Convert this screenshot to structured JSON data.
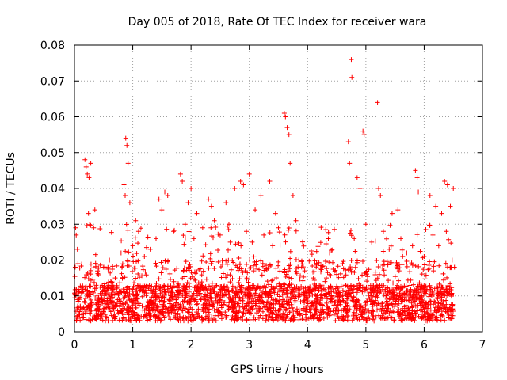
{
  "chart_data": {
    "type": "scatter",
    "title": "Day 005 of 2018, Rate Of TEC Index for receiver wara",
    "xlabel": "GPS time / hours",
    "ylabel": "ROTI / TECUs",
    "xlim": [
      0,
      7
    ],
    "ylim": [
      0,
      0.08
    ],
    "xticks": [
      "0",
      "1",
      "2",
      "3",
      "4",
      "5",
      "6",
      "7"
    ],
    "yticks": [
      "0",
      "0.01",
      "0.02",
      "0.03",
      "0.04",
      "0.05",
      "0.06",
      "0.07",
      "0.08"
    ],
    "grid": true,
    "marker": "+",
    "color": "#ff0000",
    "series": [
      {
        "name": "ROTI",
        "points": [
          [
            0.02,
            0.029
          ],
          [
            0.03,
            0.027
          ],
          [
            0.05,
            0.023
          ],
          [
            0.06,
            0.019
          ],
          [
            0.18,
            0.048
          ],
          [
            0.2,
            0.046
          ],
          [
            0.22,
            0.044
          ],
          [
            0.25,
            0.043
          ],
          [
            0.28,
            0.047
          ],
          [
            0.24,
            0.033
          ],
          [
            0.35,
            0.034
          ],
          [
            0.33,
            0.029
          ],
          [
            0.88,
            0.054
          ],
          [
            0.9,
            0.052
          ],
          [
            0.92,
            0.047
          ],
          [
            0.87,
            0.038
          ],
          [
            0.95,
            0.036
          ],
          [
            0.85,
            0.041
          ],
          [
            1.05,
            0.031
          ],
          [
            1.1,
            0.028
          ],
          [
            1.45,
            0.037
          ],
          [
            1.5,
            0.034
          ],
          [
            1.55,
            0.039
          ],
          [
            1.6,
            0.038
          ],
          [
            1.82,
            0.044
          ],
          [
            1.85,
            0.042
          ],
          [
            1.95,
            0.036
          ],
          [
            2.0,
            0.04
          ],
          [
            2.1,
            0.033
          ],
          [
            2.3,
            0.037
          ],
          [
            2.35,
            0.035
          ],
          [
            2.6,
            0.036
          ],
          [
            2.75,
            0.04
          ],
          [
            2.85,
            0.042
          ],
          [
            2.9,
            0.041
          ],
          [
            3.0,
            0.044
          ],
          [
            3.1,
            0.034
          ],
          [
            3.2,
            0.038
          ],
          [
            3.35,
            0.042
          ],
          [
            3.45,
            0.033
          ],
          [
            3.6,
            0.061
          ],
          [
            3.62,
            0.06
          ],
          [
            3.65,
            0.057
          ],
          [
            3.68,
            0.055
          ],
          [
            3.7,
            0.047
          ],
          [
            3.75,
            0.038
          ],
          [
            3.8,
            0.031
          ],
          [
            4.7,
            0.053
          ],
          [
            4.72,
            0.047
          ],
          [
            4.75,
            0.076
          ],
          [
            4.76,
            0.071
          ],
          [
            4.85,
            0.043
          ],
          [
            4.9,
            0.04
          ],
          [
            4.95,
            0.056
          ],
          [
            4.97,
            0.055
          ],
          [
            5.2,
            0.064
          ],
          [
            5.22,
            0.04
          ],
          [
            5.25,
            0.038
          ],
          [
            5.45,
            0.033
          ],
          [
            5.55,
            0.034
          ],
          [
            5.85,
            0.045
          ],
          [
            5.88,
            0.043
          ],
          [
            5.9,
            0.039
          ],
          [
            6.1,
            0.038
          ],
          [
            6.2,
            0.035
          ],
          [
            6.35,
            0.042
          ],
          [
            6.4,
            0.041
          ],
          [
            6.5,
            0.04
          ],
          [
            6.45,
            0.035
          ],
          [
            6.3,
            0.033
          ],
          [
            0.5,
            0.018
          ],
          [
            0.6,
            0.02
          ],
          [
            0.7,
            0.015
          ],
          [
            0.8,
            0.022
          ],
          [
            1.0,
            0.024
          ],
          [
            1.2,
            0.021
          ],
          [
            1.3,
            0.023
          ],
          [
            1.4,
            0.026
          ],
          [
            1.7,
            0.028
          ],
          [
            1.9,
            0.03
          ],
          [
            2.05,
            0.026
          ],
          [
            2.2,
            0.029
          ],
          [
            2.4,
            0.031
          ],
          [
            2.5,
            0.027
          ],
          [
            2.65,
            0.03
          ],
          [
            2.95,
            0.028
          ],
          [
            3.05,
            0.025
          ],
          [
            3.25,
            0.027
          ],
          [
            3.4,
            0.024
          ],
          [
            3.5,
            0.029
          ],
          [
            3.85,
            0.02
          ],
          [
            3.95,
            0.017
          ],
          [
            4.1,
            0.015
          ],
          [
            4.3,
            0.014
          ],
          [
            4.5,
            0.016
          ],
          [
            4.6,
            0.019
          ],
          [
            4.8,
            0.026
          ],
          [
            5.0,
            0.03
          ],
          [
            5.1,
            0.025
          ],
          [
            5.3,
            0.028
          ],
          [
            5.4,
            0.023
          ],
          [
            5.6,
            0.026
          ],
          [
            5.7,
            0.022
          ],
          [
            5.8,
            0.024
          ],
          [
            6.0,
            0.021
          ],
          [
            6.15,
            0.027
          ],
          [
            6.25,
            0.024
          ],
          [
            6.38,
            0.028
          ],
          [
            6.48,
            0.02
          ],
          [
            6.52,
            0.018
          ]
        ]
      }
    ]
  }
}
